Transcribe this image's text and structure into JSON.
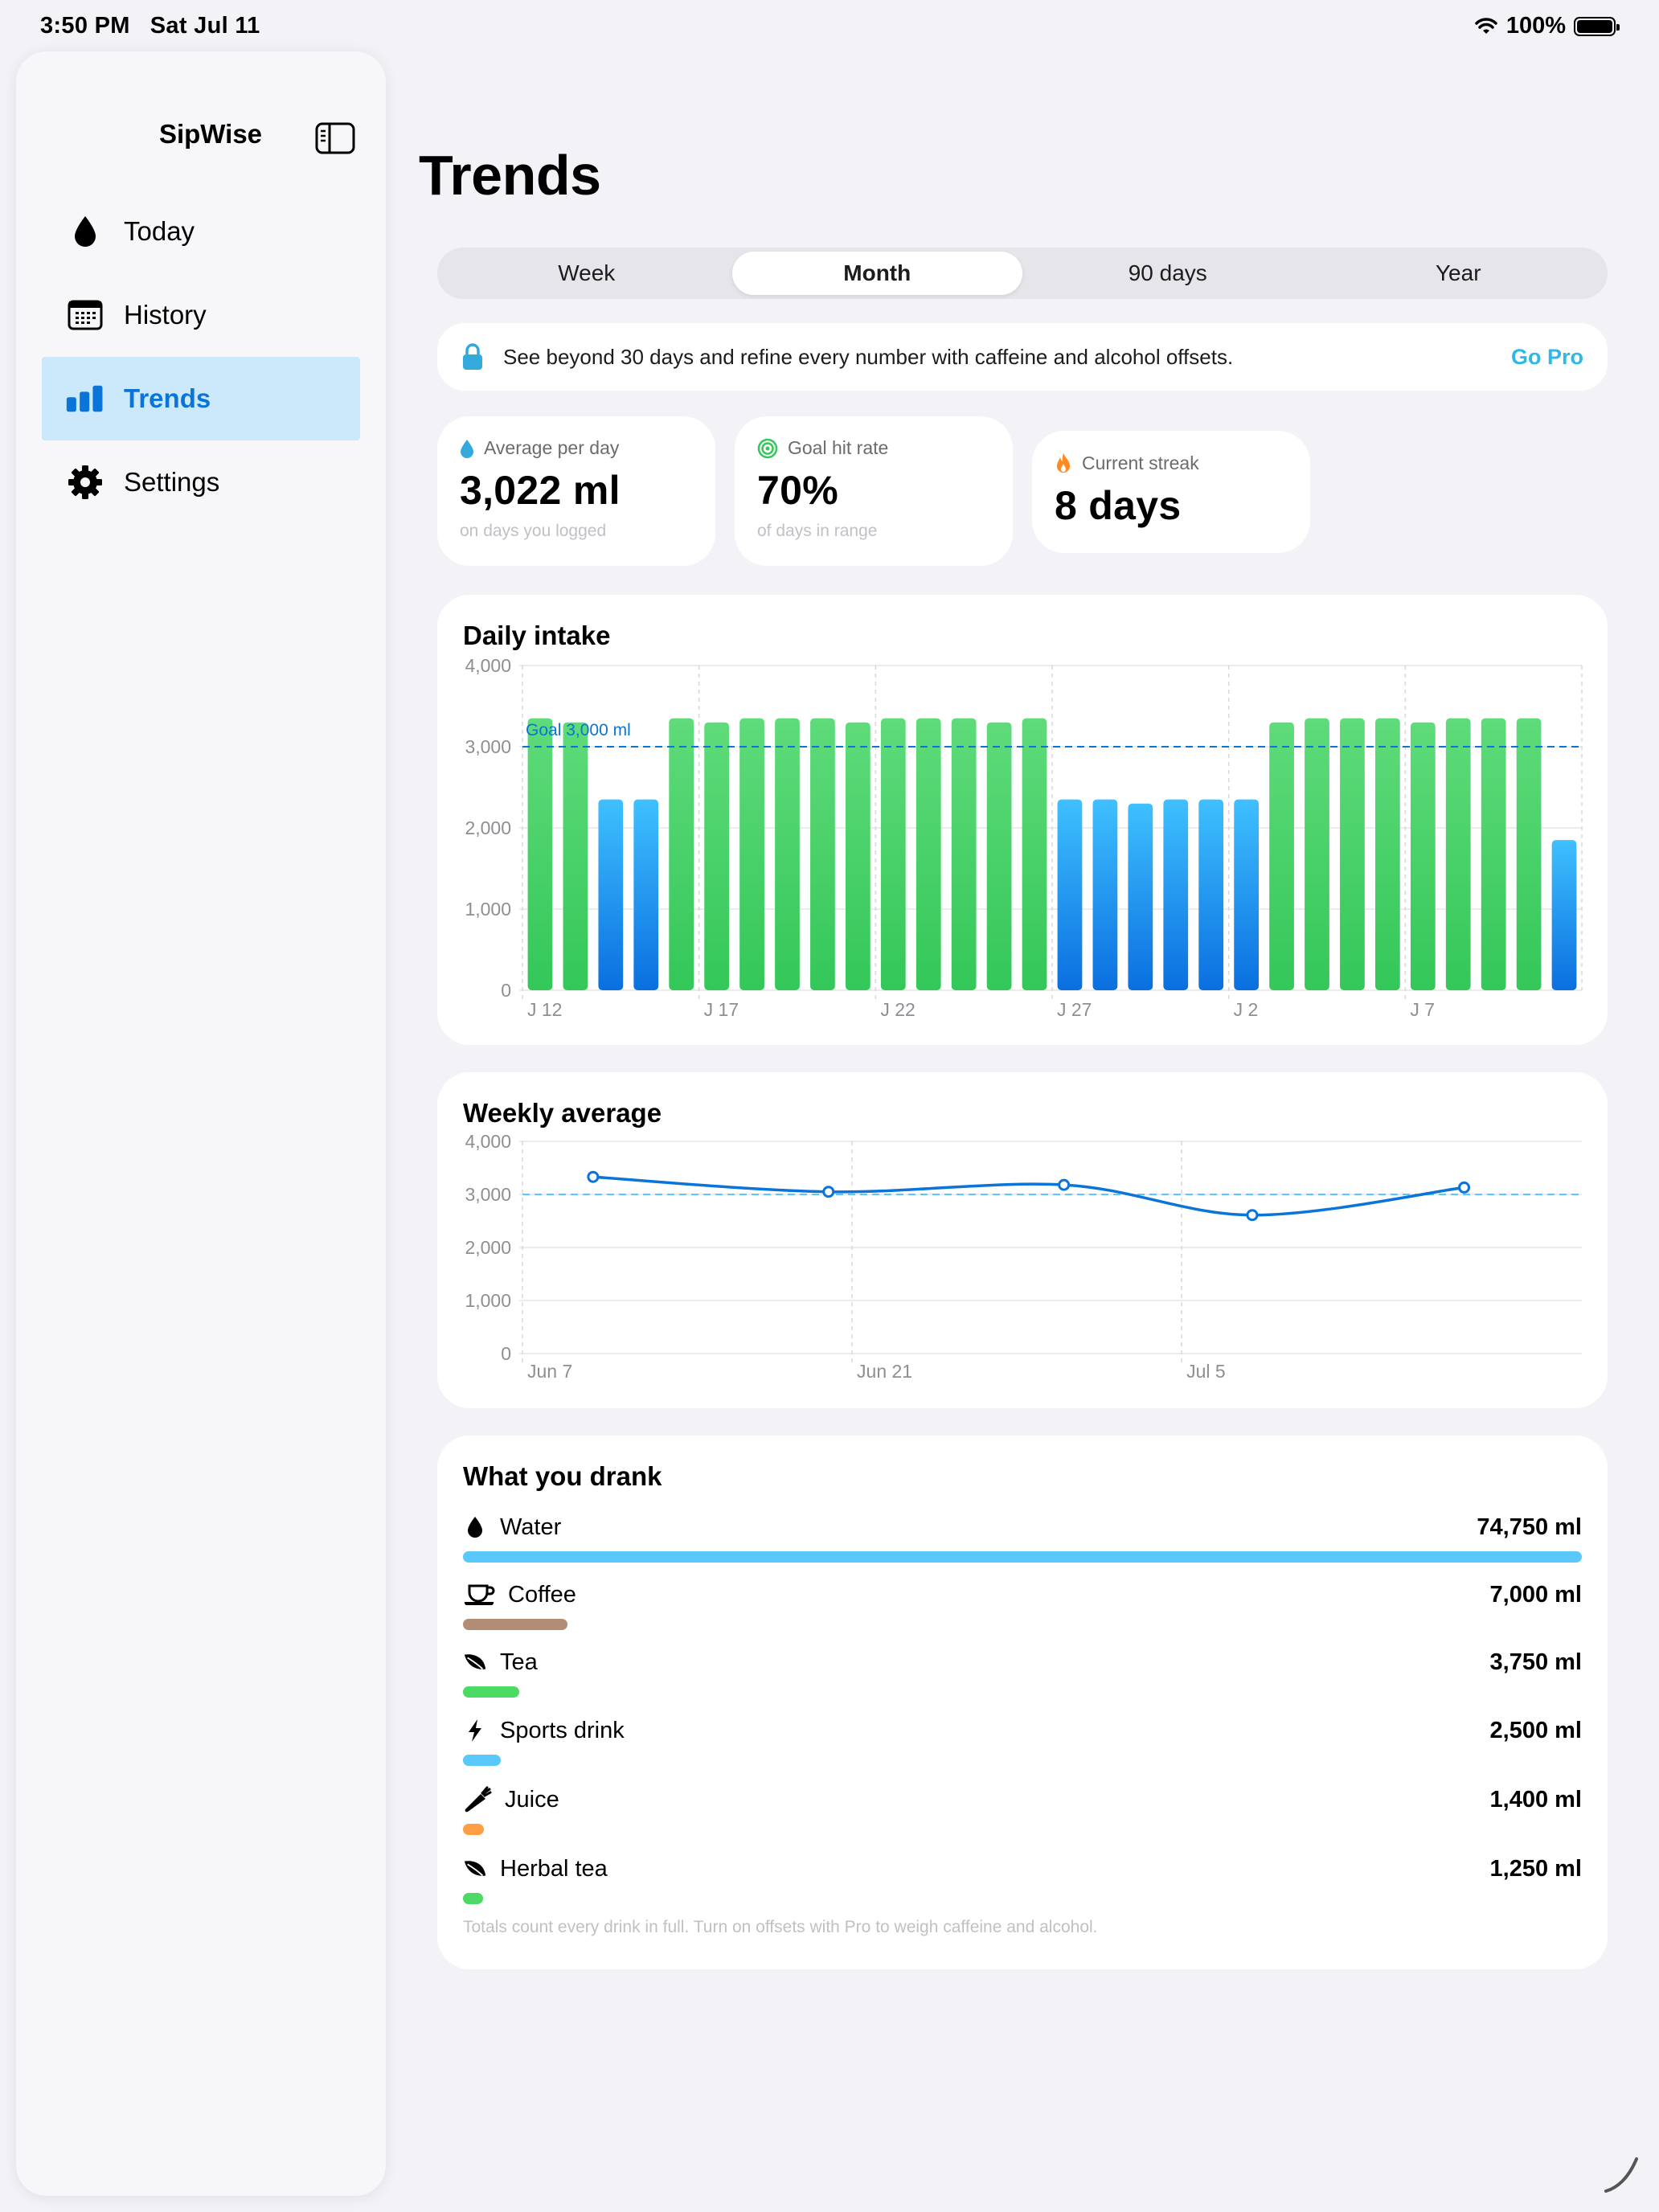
{
  "status": {
    "time": "3:50 PM",
    "date": "Sat Jul 11",
    "battery": "100%"
  },
  "sidebar": {
    "app_name": "SipWise",
    "items": [
      {
        "label": "Today",
        "icon": "drop-icon"
      },
      {
        "label": "History",
        "icon": "calendar-icon"
      },
      {
        "label": "Trends",
        "icon": "chart-bar-icon",
        "active": true
      },
      {
        "label": "Settings",
        "icon": "gear-icon"
      }
    ]
  },
  "page": {
    "title": "Trends"
  },
  "range_tabs": {
    "options": [
      "Week",
      "Month",
      "90 days",
      "Year"
    ],
    "selected": "Month"
  },
  "pro_banner": {
    "text": "See beyond 30 days and refine every number with caffeine and alcohol offsets.",
    "action": "Go Pro"
  },
  "stats": [
    {
      "label": "Average per day",
      "value": "3,022 ml",
      "sub": "on days you logged",
      "icon": "drop-icon",
      "color": "#34aadc"
    },
    {
      "label": "Goal hit rate",
      "value": "70%",
      "sub": "of days in range",
      "icon": "target-icon",
      "color": "#34c759"
    },
    {
      "label": "Current streak",
      "value": "8 days",
      "sub": "",
      "icon": "flame-icon",
      "color": "#ff8a1f"
    }
  ],
  "daily_chart": {
    "title": "Daily intake",
    "goal_label": "Goal 3,000 ml",
    "goal": 3000,
    "y_ticks": [
      "4,000",
      "3,000",
      "2,000",
      "1,000",
      "0"
    ],
    "x_ticks": [
      "J 12",
      "J 17",
      "J 22",
      "J 27",
      "J 2",
      "J 7"
    ]
  },
  "weekly_chart": {
    "title": "Weekly average",
    "y_ticks": [
      "4,000",
      "3,000",
      "2,000",
      "1,000",
      "0"
    ],
    "x_ticks": [
      "Jun 7",
      "Jun 21",
      "Jul 5"
    ]
  },
  "chart_data": [
    {
      "type": "bar",
      "title": "Daily intake",
      "ylim": [
        0,
        4000
      ],
      "goal": 3000,
      "categories": [
        "Jun 12",
        "Jun 13",
        "Jun 14",
        "Jun 15",
        "Jun 16",
        "Jun 17",
        "Jun 18",
        "Jun 19",
        "Jun 20",
        "Jun 21",
        "Jun 22",
        "Jun 23",
        "Jun 24",
        "Jun 25",
        "Jun 26",
        "Jun 27",
        "Jun 28",
        "Jun 29",
        "Jun 30",
        "Jul 1",
        "Jul 2",
        "Jul 3",
        "Jul 4",
        "Jul 5",
        "Jul 6",
        "Jul 7",
        "Jul 8",
        "Jul 9",
        "Jul 10",
        "Jul 11"
      ],
      "values": [
        3350,
        3300,
        2350,
        2350,
        3350,
        3300,
        3350,
        3350,
        3350,
        3300,
        3350,
        3350,
        3350,
        3300,
        3350,
        2350,
        2350,
        2300,
        2350,
        2350,
        2350,
        3300,
        3350,
        3350,
        3350,
        3300,
        3350,
        3350,
        3350,
        1850
      ],
      "colors": {
        "goal_met": "#34c759",
        "below_goal": "#1c9bf0"
      }
    },
    {
      "type": "line",
      "title": "Weekly average",
      "ylim": [
        0,
        4000
      ],
      "goal": 3000,
      "x": [
        "Jun 10",
        "Jun 20",
        "Jun 30",
        "Jul 8",
        "Jul 17"
      ],
      "values": [
        3330,
        3050,
        3180,
        2610,
        3130
      ],
      "x_ticks": [
        "Jun 7",
        "Jun 21",
        "Jul 5"
      ]
    }
  ],
  "drinks": {
    "title": "What you drank",
    "items": [
      {
        "name": "Water",
        "value": "74,750 ml",
        "ml": 74750,
        "color": "#5ac8fa",
        "icon": "drop-icon"
      },
      {
        "name": "Coffee",
        "value": "7,000 ml",
        "ml": 7000,
        "color": "#b08d74",
        "icon": "cup-icon"
      },
      {
        "name": "Tea",
        "value": "3,750 ml",
        "ml": 3750,
        "color": "#4cd964",
        "icon": "leaf-icon"
      },
      {
        "name": "Sports drink",
        "value": "2,500 ml",
        "ml": 2500,
        "color": "#5ac8fa",
        "icon": "bolt-icon"
      },
      {
        "name": "Juice",
        "value": "1,400 ml",
        "ml": 1400,
        "color": "#ff9f43",
        "icon": "carrot-icon"
      },
      {
        "name": "Herbal tea",
        "value": "1,250 ml",
        "ml": 1250,
        "color": "#4cd964",
        "icon": "leaf-icon"
      }
    ],
    "footnote": "Totals count every drink in full. Turn on offsets with Pro to weigh caffeine and alcohol."
  }
}
